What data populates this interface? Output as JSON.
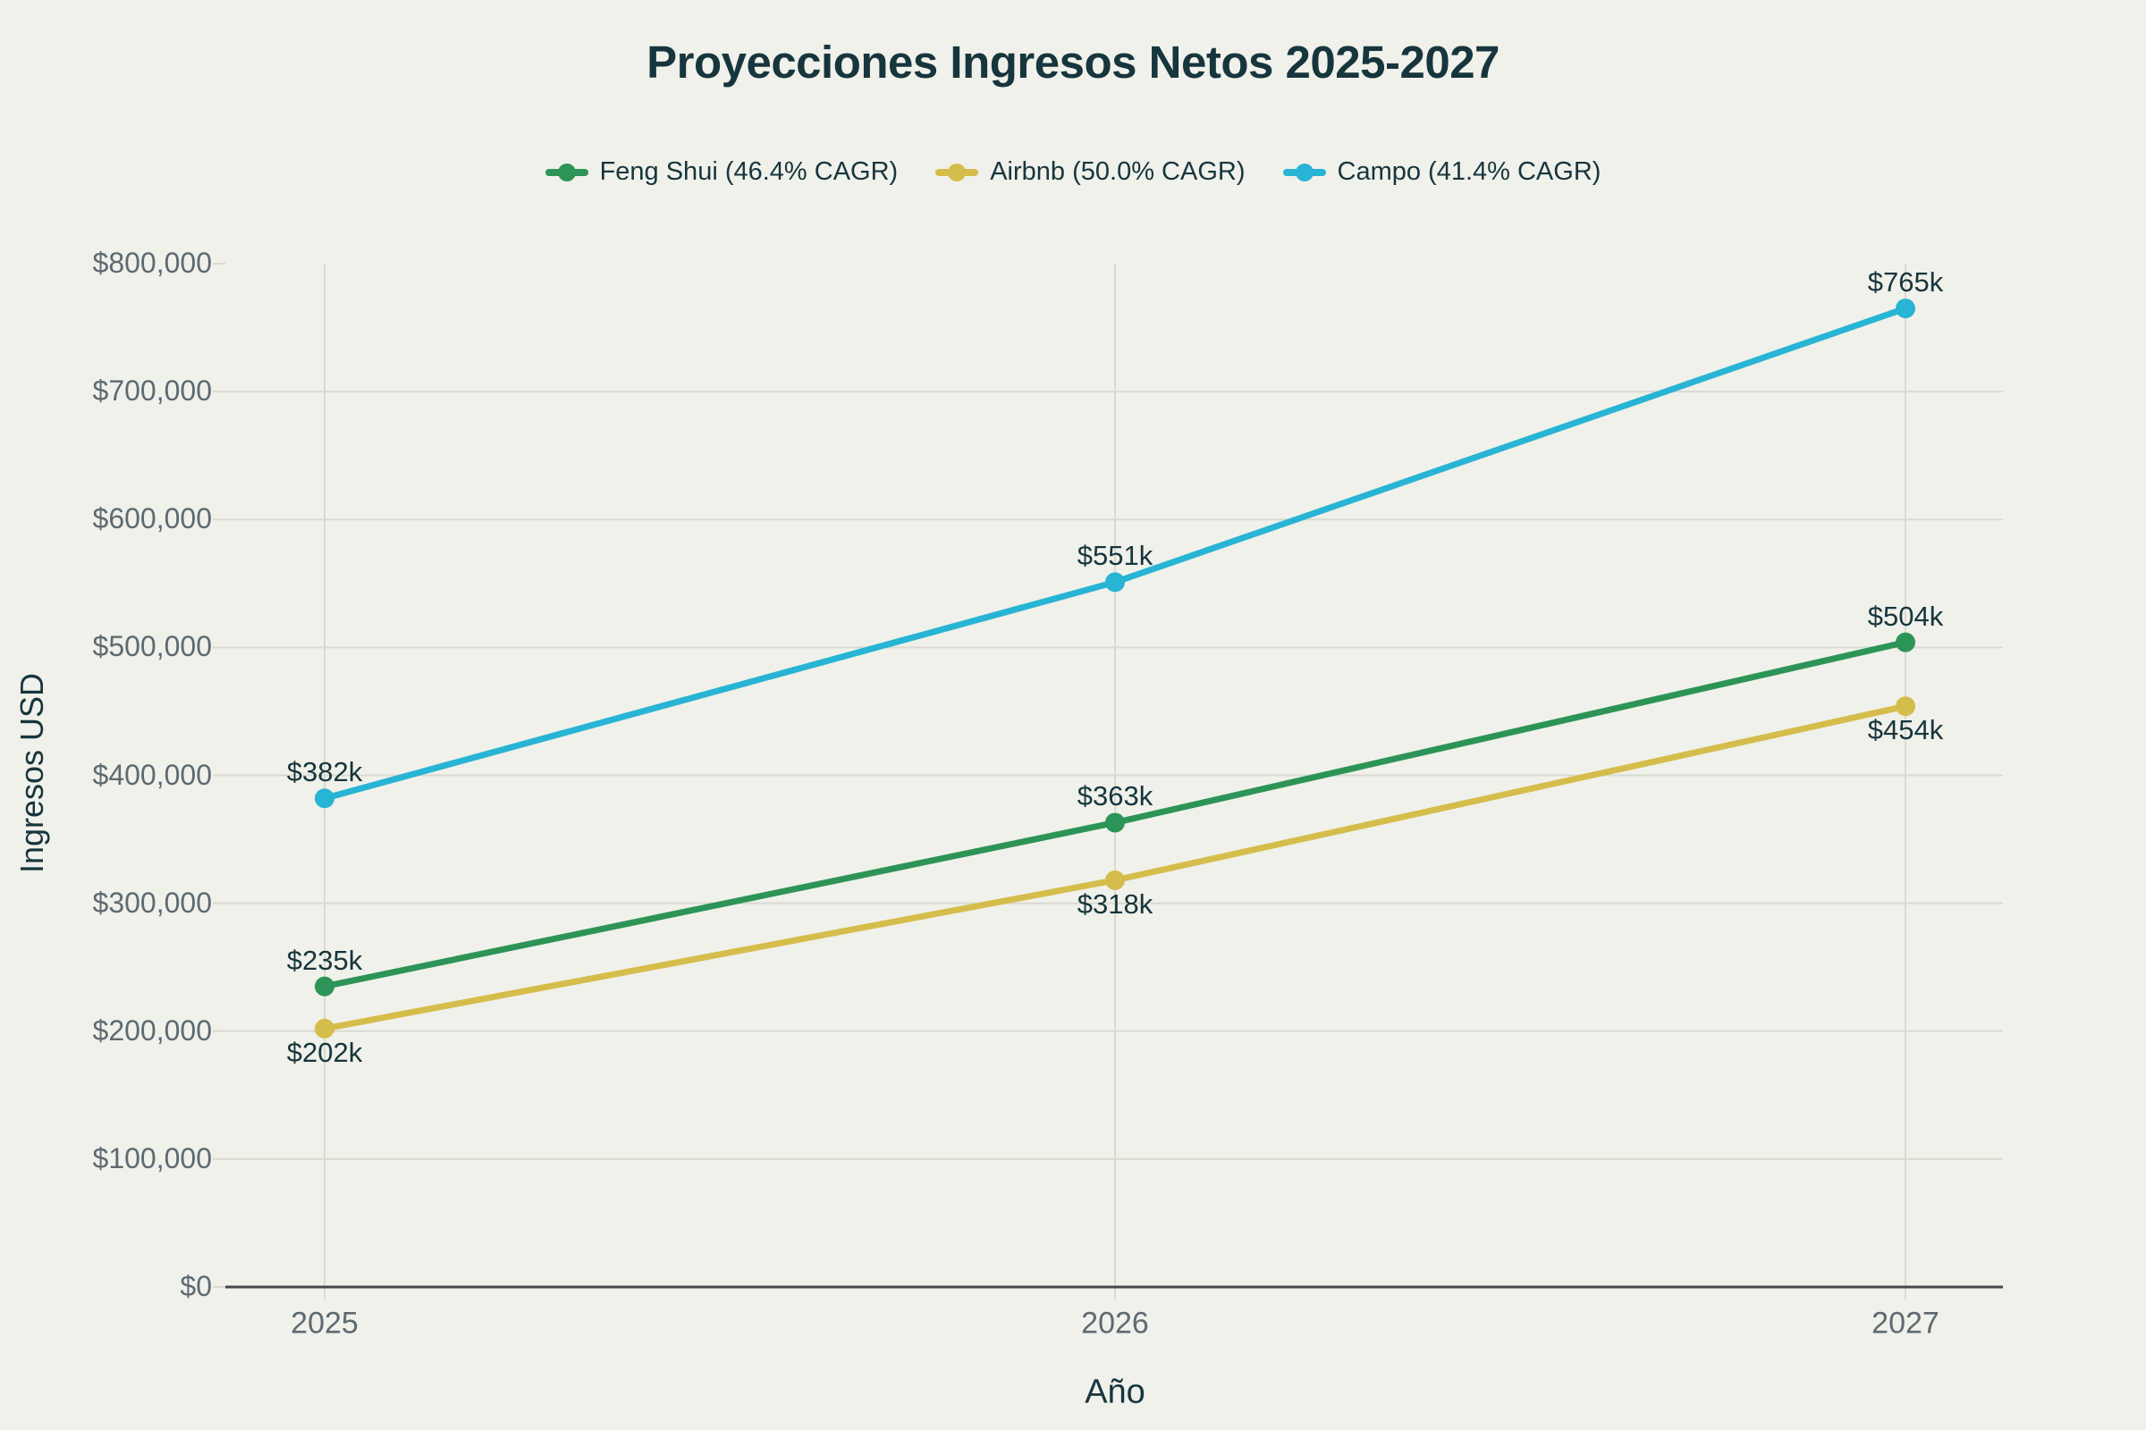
{
  "title": "Proyecciones Ingresos Netos 2025-2027",
  "colors": {
    "background": "#f0f1ea",
    "title_text": "#17353d",
    "tick_text": "#5e6a72",
    "grid": "#d9dad2",
    "axis": "#45484a",
    "feng_shui": "#2d9457",
    "airbnb": "#d5bd4b",
    "campo": "#28b4d4"
  },
  "chart_data": {
    "type": "line",
    "title": "Proyecciones Ingresos Netos 2025-2027",
    "xlabel": "Año",
    "ylabel": "Ingresos USD",
    "x": [
      2025,
      2026,
      2027
    ],
    "x_tick_labels": [
      "2025",
      "2026",
      "2027"
    ],
    "y_ticks": [
      "$0",
      "$100,000",
      "$200,000",
      "$300,000",
      "$400,000",
      "$500,000",
      "$600,000",
      "$700,000",
      "$800,000"
    ],
    "ylim": [
      0,
      800000
    ],
    "grid": true,
    "legend_position": "top-center",
    "series": [
      {
        "name": "Feng Shui (46.4% CAGR)",
        "color": "#2d9457",
        "values": [
          235000,
          363000,
          504000
        ],
        "point_labels": [
          "$235k",
          "$363k",
          "$504k"
        ],
        "label_placement": "above"
      },
      {
        "name": "Airbnb (50.0% CAGR)",
        "color": "#d5bd4b",
        "values": [
          202000,
          318000,
          454000
        ],
        "point_labels": [
          "$202k",
          "$318k",
          "$454k"
        ],
        "label_placement": "below"
      },
      {
        "name": "Campo (41.4% CAGR)",
        "color": "#28b4d4",
        "values": [
          382000,
          551000,
          765000
        ],
        "point_labels": [
          "$382k",
          "$551k",
          "$765k"
        ],
        "label_placement": "above"
      }
    ]
  }
}
